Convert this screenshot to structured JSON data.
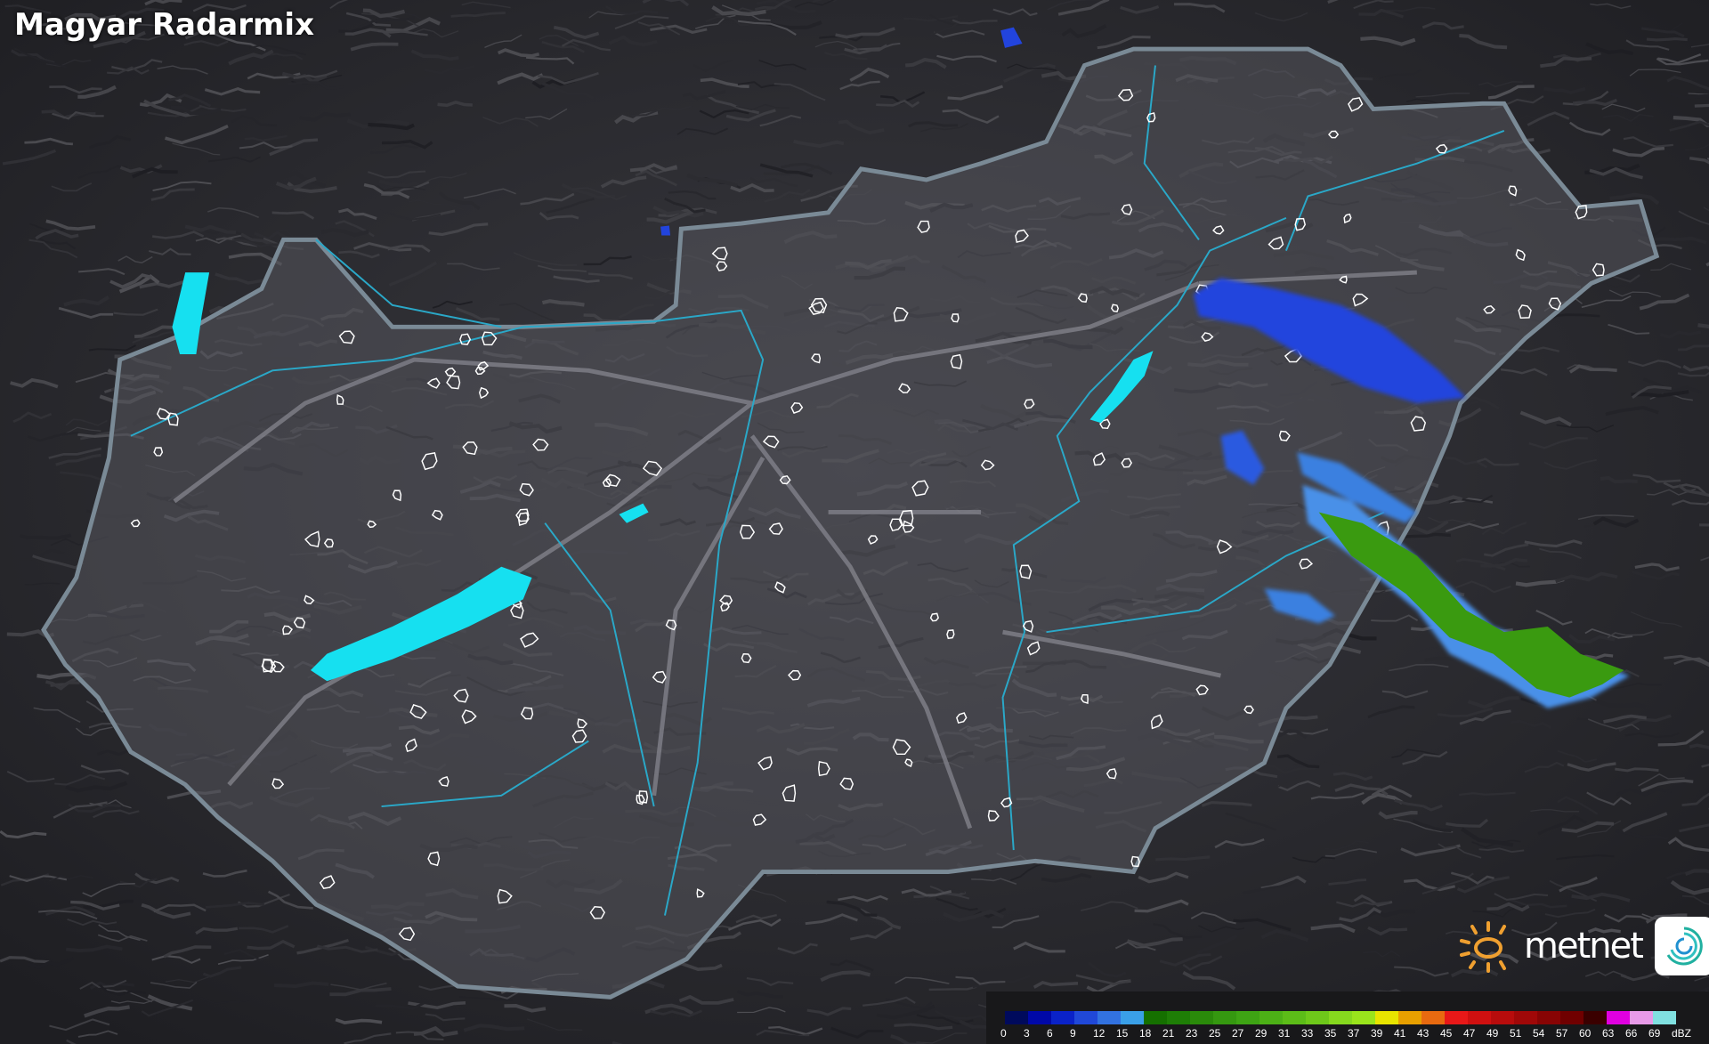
{
  "title": "Magyar Radarmix",
  "brand": {
    "name": "metnet",
    "sun_color": "#f0a030"
  },
  "legend": {
    "unit": "dBZ",
    "labels": [
      "0",
      "3",
      "6",
      "9",
      "12",
      "15",
      "18",
      "21",
      "23",
      "25",
      "27",
      "29",
      "31",
      "33",
      "35",
      "37",
      "39",
      "41",
      "43",
      "45",
      "47",
      "49",
      "51",
      "54",
      "57",
      "60",
      "63",
      "66",
      "69"
    ],
    "colors": [
      "#000a5c",
      "#0008a8",
      "#0a22c8",
      "#2048d8",
      "#3272e0",
      "#3aa0e8",
      "#157000",
      "#1e7e06",
      "#2a8a0a",
      "#359810",
      "#3ea414",
      "#4cb016",
      "#5cbc18",
      "#6ec81a",
      "#86d81e",
      "#9ae41c",
      "#e8e400",
      "#e8a000",
      "#e86a10",
      "#e81818",
      "#d01010",
      "#b80c0c",
      "#a00808",
      "#880404",
      "#700000",
      "#3a0000",
      "#e000e0",
      "#e89ae8",
      "#80e0e0"
    ]
  },
  "colors": {
    "lake": "#16e0f0",
    "border": "#7a8a96",
    "river": "#2aa8c8",
    "radar_light": "#2244dd",
    "radar_moderate": "#3a9a10"
  }
}
